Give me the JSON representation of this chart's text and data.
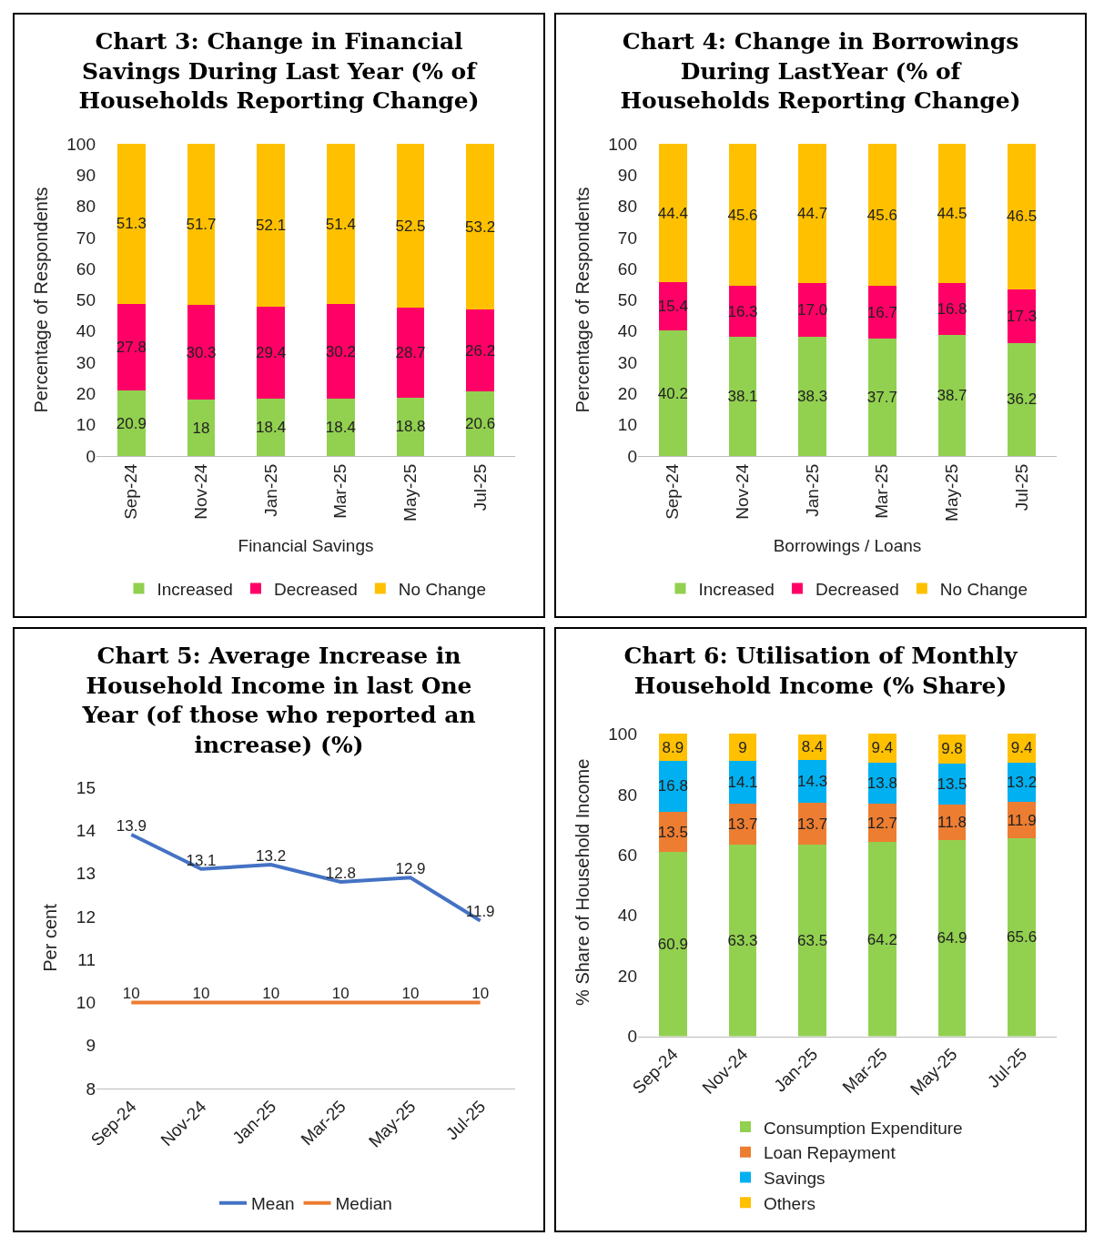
{
  "chart_data": [
    {
      "type": "bar",
      "title": "Chart 3: Change in Financial Savings During Last Year (% of Households Reporting Change)",
      "categories": [
        "Sep-24",
        "Nov-24",
        "Jan-25",
        "Mar-25",
        "May-25",
        "Jul-25"
      ],
      "stacked": true,
      "xlabel": "Financial Savings",
      "ylabel": "Percentage of Respondents",
      "ylim": [
        0,
        100
      ],
      "yticks": [
        0,
        10,
        20,
        30,
        40,
        50,
        60,
        70,
        80,
        90,
        100
      ],
      "legend": "bottom",
      "series": [
        {
          "name": "Increased",
          "color": "#92d050",
          "values": [
            20.9,
            18,
            18.4,
            18.4,
            18.8,
            20.6
          ],
          "value_labels": [
            "20.9",
            "18",
            "18.4",
            "18.4",
            "18.8",
            "20.6"
          ]
        },
        {
          "name": "Decreased",
          "color": "#ff0066",
          "values": [
            27.8,
            30.3,
            29.4,
            30.2,
            28.7,
            26.2
          ],
          "value_labels": [
            "27.8",
            "30.3",
            "29.4",
            "30.2",
            "28.7",
            "26.2"
          ]
        },
        {
          "name": "No Change",
          "color": "#ffc000",
          "values": [
            51.3,
            51.7,
            52.1,
            51.4,
            52.5,
            53.2
          ],
          "value_labels": [
            "51.3",
            "51.7",
            "52.1",
            "51.4",
            "52.5",
            "53.2"
          ]
        }
      ]
    },
    {
      "type": "bar",
      "title": "Chart 4: Change in Borrowings During LastYear (% of Households Reporting Change)",
      "categories": [
        "Sep-24",
        "Nov-24",
        "Jan-25",
        "Mar-25",
        "May-25",
        "Jul-25"
      ],
      "stacked": true,
      "xlabel": "Borrowings / Loans",
      "ylabel": "Percentage of Respondents",
      "ylim": [
        0,
        100
      ],
      "yticks": [
        0,
        10,
        20,
        30,
        40,
        50,
        60,
        70,
        80,
        90,
        100
      ],
      "legend": "bottom",
      "series": [
        {
          "name": "Increased",
          "color": "#92d050",
          "values": [
            40.2,
            38.1,
            38.3,
            37.7,
            38.7,
            36.2
          ],
          "value_labels": [
            "40.2",
            "38.1",
            "38.3",
            "37.7",
            "38.7",
            "36.2"
          ]
        },
        {
          "name": "Decreased",
          "color": "#ff0066",
          "values": [
            15.4,
            16.3,
            17.0,
            16.7,
            16.8,
            17.3
          ],
          "value_labels": [
            "15.4",
            "16.3",
            "17.0",
            "16.7",
            "16.8",
            "17.3"
          ]
        },
        {
          "name": "No Change",
          "color": "#ffc000",
          "values": [
            44.4,
            45.6,
            44.7,
            45.6,
            44.5,
            46.5
          ],
          "value_labels": [
            "44.4",
            "45.6",
            "44.7",
            "45.6",
            "44.5",
            "46.5"
          ]
        }
      ]
    },
    {
      "type": "line",
      "title": "Chart 5: Average  Increase in Household Income in last One Year (of those who reported an increase) (%)",
      "categories": [
        "Sep-24",
        "Nov-24",
        "Jan-25",
        "Mar-25",
        "May-25",
        "Jul-25"
      ],
      "ylabel": "Per cent",
      "ylim": [
        8,
        15
      ],
      "yticks": [
        8,
        9,
        10,
        11,
        12,
        13,
        14,
        15
      ],
      "legend": "bottom",
      "series": [
        {
          "name": "Mean",
          "color": "#4472c4",
          "values": [
            13.9,
            13.1,
            13.2,
            12.8,
            12.9,
            11.9
          ],
          "value_labels": [
            "13.9",
            "13.1",
            "13.2",
            "12.8",
            "12.9",
            "11.9"
          ]
        },
        {
          "name": "Median",
          "color": "#ed7d31",
          "values": [
            10,
            10,
            10,
            10,
            10,
            10
          ],
          "value_labels": [
            "10",
            "10",
            "10",
            "10",
            "10",
            "10"
          ]
        }
      ]
    },
    {
      "type": "bar",
      "title": "Chart 6: Utilisation of Monthly Household Income (% Share)",
      "categories": [
        "Sep-24",
        "Nov-24",
        "Jan-25",
        "Mar-25",
        "May-25",
        "Jul-25"
      ],
      "stacked": true,
      "ylabel": "% Share of Household Income",
      "ylim": [
        0,
        102
      ],
      "yticks": [
        0,
        20,
        40,
        60,
        80,
        100
      ],
      "legend": "bottom",
      "series": [
        {
          "name": "Consumption Expenditure",
          "color": "#92d050",
          "values": [
            60.9,
            63.3,
            63.5,
            64.2,
            64.9,
            65.6
          ],
          "value_labels": [
            "60.9",
            "63.3",
            "63.5",
            "64.2",
            "64.9",
            "65.6"
          ]
        },
        {
          "name": "Loan Repayment",
          "color": "#ed7d31",
          "values": [
            13.5,
            13.7,
            13.7,
            12.7,
            11.8,
            11.9
          ],
          "value_labels": [
            "13.5",
            "13.7",
            "13.7",
            "12.7",
            "11.8",
            "11.9"
          ]
        },
        {
          "name": "Savings",
          "color": "#00b0f0",
          "values": [
            16.8,
            14.1,
            14.3,
            13.8,
            13.5,
            13.2
          ],
          "value_labels": [
            "16.8",
            "14.1",
            "14.3",
            "13.8",
            "13.5",
            "13.2"
          ]
        },
        {
          "name": "Others",
          "color": "#ffc000",
          "values": [
            8.9,
            9,
            8.4,
            9.4,
            9.8,
            9.4
          ],
          "value_labels": [
            "8.9",
            "9",
            "8.4",
            "9.4",
            "9.8",
            "9.4"
          ]
        }
      ]
    }
  ]
}
